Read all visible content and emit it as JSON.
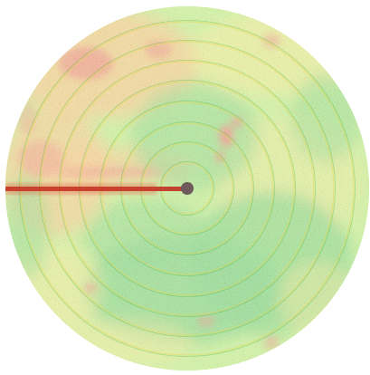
{
  "map": {
    "palette": {
      "background": "#ffffff",
      "low": "#2fb533",
      "mid": "#9be04a",
      "highlight": "#e8d84a",
      "high": "#f0a03a",
      "stress": "#d9402a",
      "pivot_track": "#c23a2a",
      "pivot_center": "#6e5a5a"
    },
    "legend": "none"
  }
}
